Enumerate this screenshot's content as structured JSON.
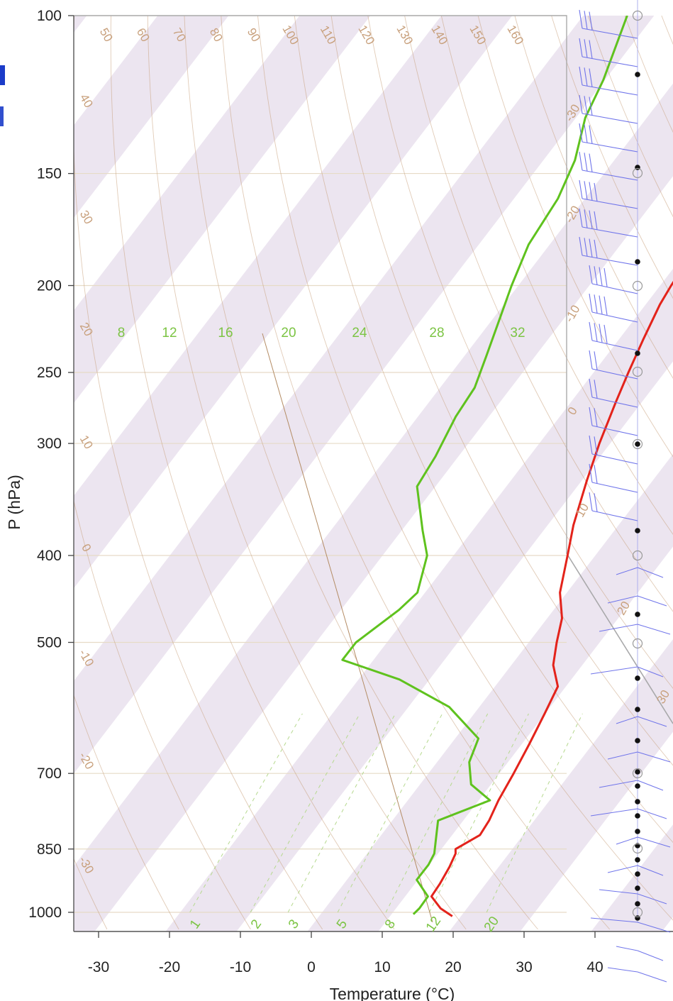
{
  "chart_data": {
    "type": "skew-t",
    "xlabel": "Temperature (°C)",
    "ylabel": "P (hPa)",
    "x_ticks": [
      "-30",
      "-20",
      "-10",
      "0",
      "10",
      "20",
      "30",
      "40"
    ],
    "y_ticks": [
      "100",
      "150",
      "200",
      "250",
      "300",
      "400",
      "500",
      "700",
      "850",
      "1000"
    ],
    "xlim": [
      -33.5,
      36
    ],
    "ylim": [
      1013,
      100
    ],
    "log_pressure": true,
    "colors": {
      "temperature": "#e3231b",
      "dewpoint": "#5fc21e",
      "wind": "#6f74ea",
      "mixing_ratio": "#7cc444",
      "dry_adiabat": "#c8a07c",
      "band": "#ece5f0"
    },
    "series": [
      {
        "pressure": [
          1010,
          990,
          960,
          930,
          890,
          860,
          850,
          820,
          790,
          750,
          700,
          650,
          600,
          560,
          530,
          500,
          470,
          440,
          400,
          370,
          330,
          300,
          270,
          250,
          230,
          210,
          200,
          185,
          170,
          160,
          150,
          140,
          130,
          120,
          110,
          100
        ],
        "values": [
          20.3,
          17.8,
          15.2,
          15.0,
          14.5,
          13.9,
          13.4,
          15.3,
          15.0,
          14.1,
          13.3,
          12.3,
          11.1,
          10.0,
          7.0,
          5.0,
          3.1,
          0.0,
          -3.0,
          -5.5,
          -8.5,
          -10.8,
          -13.0,
          -14.5,
          -16.0,
          -17.5,
          -18.0,
          -18.5,
          -19.0,
          -19.5,
          -20.5,
          -22.0,
          -24.0,
          -26.5,
          -27.5,
          -27.5
        ]
      },
      {
        "pressure": [
          1005,
          990,
          960,
          920,
          885,
          860,
          830,
          790,
          750,
          720,
          680,
          640,
          590,
          550,
          523,
          500,
          460,
          440,
          400,
          375,
          335,
          310,
          280,
          260,
          240,
          220,
          200,
          180,
          160,
          145,
          130,
          118,
          100
        ],
        "values": [
          14.6,
          14.8,
          14.7,
          11.3,
          11.3,
          10.9,
          9.6,
          7.8,
          12.9,
          8.5,
          5.8,
          4.5,
          -3.1,
          -13.1,
          -23.3,
          -23.3,
          -20.8,
          -20.1,
          -22.8,
          -26.2,
          -31.8,
          -32.5,
          -34.0,
          -34.5,
          -36.3,
          -38.3,
          -40.5,
          -42.6,
          -43.5,
          -45.3,
          -48.5,
          -50.1,
          -53.8
        ]
      }
    ],
    "mixing_ratio_labels_top": [
      "8",
      "12",
      "16",
      "20",
      "24",
      "28",
      "32"
    ],
    "mixing_ratio_labels_bottom": [
      "1",
      "2",
      "3",
      "5",
      "8",
      "12",
      "20"
    ],
    "theta_labels": [
      "50",
      "60",
      "70",
      "80",
      "90",
      "100",
      "110",
      "120",
      "130",
      "140",
      "150",
      "160"
    ],
    "left_edge_labels": [
      "40",
      "30",
      "20",
      "10",
      "0",
      "-10",
      "-20",
      "-30"
    ],
    "right_edge_labels": [
      "30",
      "20",
      "10",
      "0",
      "-10",
      "-20",
      "-30"
    ]
  }
}
